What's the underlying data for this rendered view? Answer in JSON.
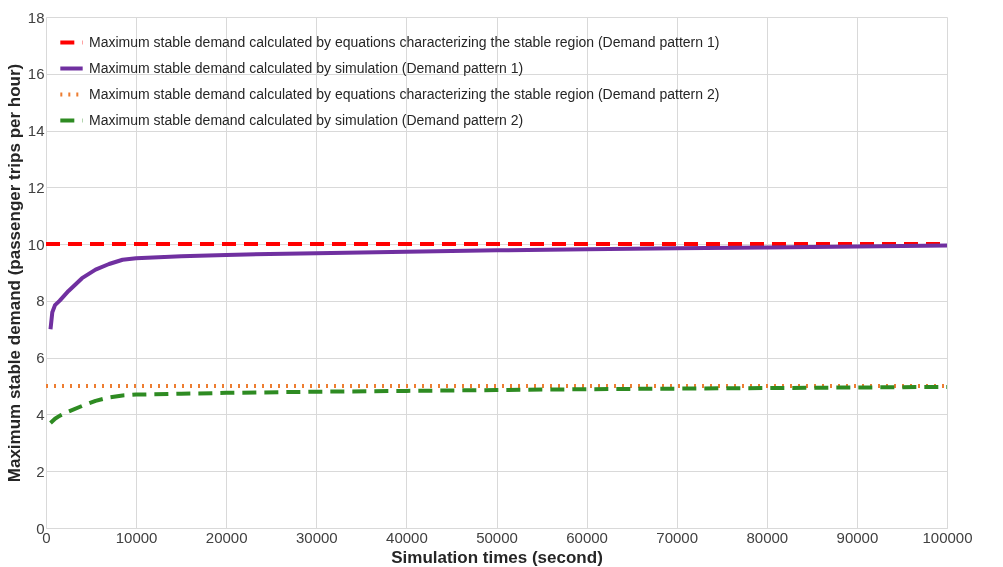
{
  "chart_data": {
    "type": "line",
    "xlabel": "Simulation times (second)",
    "ylabel": "Maximum stable demand (passenger trips per hour)",
    "xlim": [
      0,
      100000
    ],
    "xticks": [
      0,
      10000,
      20000,
      30000,
      40000,
      50000,
      60000,
      70000,
      80000,
      90000,
      100000
    ],
    "ylim": [
      0,
      18
    ],
    "yticks": [
      0,
      2,
      4,
      6,
      8,
      10,
      12,
      14,
      16,
      18
    ],
    "grid": true,
    "legend": "top left",
    "series": [
      {
        "name": "Maximum stable demand calculated by equations characterizing the stable region (Demand pattern 1)",
        "color": "#ff0000",
        "line_style": "dashed",
        "x": [
          0,
          100000
        ],
        "values": [
          10,
          10
        ]
      },
      {
        "name": "Maximum stable demand calculated by simulation (Demand pattern 1)",
        "color": "#7030a0",
        "line_style": "solid",
        "x": [
          500,
          700,
          1000,
          1500,
          2500,
          4000,
          5500,
          7000,
          8500,
          10000,
          15000,
          20000,
          30000,
          40000,
          50000,
          60000,
          70000,
          80000,
          90000,
          100000
        ],
        "values": [
          7.0,
          7.6,
          7.85,
          8.0,
          8.35,
          8.8,
          9.1,
          9.3,
          9.45,
          9.5,
          9.57,
          9.62,
          9.68,
          9.73,
          9.78,
          9.82,
          9.85,
          9.88,
          9.92,
          9.95
        ]
      },
      {
        "name": "Maximum stable demand calculated by equations characterizing the stable region (Demand pattern 2)",
        "color": "#ed7d31",
        "line_style": "dotted",
        "x": [
          0,
          100000
        ],
        "values": [
          5,
          5
        ]
      },
      {
        "name": "Maximum stable demand calculated by simulation (Demand pattern 2)",
        "color": "#2e8b22",
        "line_style": "dashed",
        "x": [
          500,
          1000,
          1500,
          2500,
          4000,
          5500,
          7000,
          8500,
          10000,
          15000,
          20000,
          30000,
          40000,
          50000,
          60000,
          70000,
          80000,
          90000,
          100000
        ],
        "values": [
          3.7,
          3.85,
          3.95,
          4.1,
          4.3,
          4.48,
          4.6,
          4.67,
          4.7,
          4.73,
          4.76,
          4.8,
          4.83,
          4.86,
          4.89,
          4.91,
          4.93,
          4.95,
          4.97
        ]
      }
    ]
  }
}
